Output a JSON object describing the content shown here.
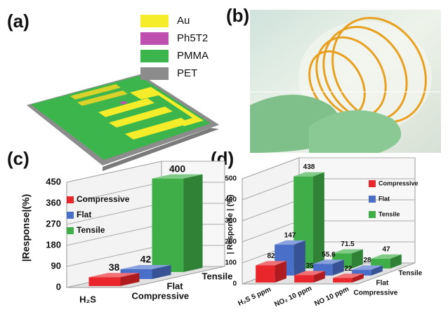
{
  "panel_a": {
    "label": "(a)",
    "legend": [
      {
        "name": "Au",
        "color": "#f5ec2a"
      },
      {
        "name": "Ph5T2",
        "color": "#c050b0"
      },
      {
        "name": "PMMA",
        "color": "#3cb64c"
      },
      {
        "name": "PET",
        "color": "#8c8c8c"
      }
    ]
  },
  "panel_b": {
    "label": "(b)"
  },
  "chart_data": [
    {
      "type": "bar",
      "label": "(c)",
      "y_label": "|Response|(%)",
      "categories": [
        "H₂S"
      ],
      "series": [
        {
          "name": "Compressive",
          "color": "#e8262b",
          "values": [
            38
          ]
        },
        {
          "name": "Flat",
          "color": "#4a6fc9",
          "values": [
            42
          ]
        },
        {
          "name": "Tensile",
          "color": "#3fae49",
          "values": [
            400
          ]
        }
      ],
      "ylim": [
        0,
        450
      ],
      "yticks": [
        0,
        90,
        180,
        270,
        360,
        450
      ],
      "grid": true
    },
    {
      "type": "bar",
      "label": "(d)",
      "y_label": "| Response | (%)",
      "categories": [
        "H₂S 5 ppm",
        "NO₂ 10 ppm",
        "NO 10 ppm"
      ],
      "series": [
        {
          "name": "Compressive",
          "color": "#e8262b",
          "values": [
            82,
            35,
            22
          ]
        },
        {
          "name": "Flat",
          "color": "#4a6fc9",
          "values": [
            147,
            55.6,
            28
          ]
        },
        {
          "name": "Tensile",
          "color": "#3fae49",
          "values": [
            438,
            71.5,
            47
          ]
        }
      ],
      "ylim": [
        0,
        500
      ],
      "yticks": [
        0,
        100,
        200,
        300,
        400,
        500
      ],
      "grid": true
    }
  ]
}
